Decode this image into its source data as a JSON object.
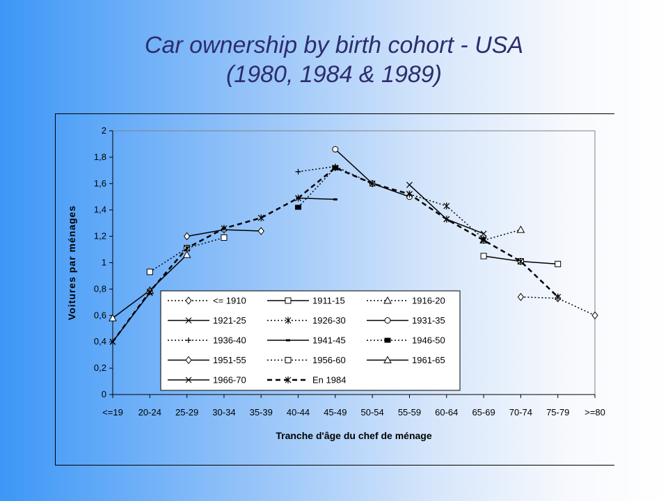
{
  "slide": {
    "title_line1": "Car ownership by birth cohort - USA",
    "title_line2": "(1980, 1984 & 1989)"
  },
  "chart_data": {
    "type": "line",
    "categories": [
      "<=19",
      "20-24",
      "25-29",
      "30-34",
      "35-39",
      "40-44",
      "45-49",
      "50-54",
      "55-59",
      "60-64",
      "65-69",
      "70-74",
      "75-79",
      ">=80"
    ],
    "xlabel": "Tranche d'âge du chef de ménage",
    "ylabel": "Voitures par ménages",
    "ylim": [
      0,
      2
    ],
    "yticks": [
      "0",
      "0,2",
      "0,4",
      "0,6",
      "0,8",
      "1",
      "1,2",
      "1,4",
      "1,6",
      "1,8",
      "2"
    ],
    "legend_position": "bottom-center inside plot",
    "series": [
      {
        "name": "<= 1910",
        "marker": "diamond",
        "dash": "dotted",
        "values": [
          null,
          null,
          null,
          null,
          null,
          null,
          null,
          null,
          null,
          null,
          null,
          0.74,
          0.73,
          0.6
        ]
      },
      {
        "name": "1911-15",
        "marker": "square",
        "dash": "solid",
        "values": [
          null,
          null,
          null,
          null,
          null,
          null,
          null,
          null,
          null,
          null,
          1.05,
          1.01,
          0.99,
          null
        ]
      },
      {
        "name": "1916-20",
        "marker": "triangle",
        "dash": "dotted",
        "values": [
          null,
          null,
          null,
          null,
          null,
          null,
          null,
          null,
          null,
          null,
          1.17,
          1.25,
          null,
          null
        ]
      },
      {
        "name": "1921-25",
        "marker": "x",
        "dash": "solid",
        "values": [
          null,
          null,
          null,
          null,
          null,
          null,
          null,
          null,
          1.59,
          1.33,
          1.22,
          null,
          null,
          null
        ]
      },
      {
        "name": "1926-30",
        "marker": "star",
        "dash": "dotted",
        "values": [
          null,
          null,
          null,
          null,
          null,
          null,
          null,
          null,
          1.52,
          1.43,
          1.18,
          null,
          null,
          null
        ]
      },
      {
        "name": "1931-35",
        "marker": "circle",
        "dash": "solid",
        "values": [
          null,
          null,
          null,
          null,
          null,
          null,
          1.86,
          1.6,
          1.5,
          null,
          null,
          null,
          null,
          null
        ]
      },
      {
        "name": "1936-40",
        "marker": "plus",
        "dash": "dotted",
        "values": [
          null,
          null,
          null,
          null,
          null,
          1.69,
          1.73,
          1.6,
          null,
          null,
          null,
          null,
          null,
          null
        ]
      },
      {
        "name": "1941-45",
        "marker": "dash",
        "dash": "solid",
        "values": [
          null,
          null,
          null,
          null,
          null,
          1.49,
          1.48,
          null,
          null,
          null,
          null,
          null,
          null,
          null
        ]
      },
      {
        "name": "1946-50",
        "marker": "fsquare",
        "dash": "dotted",
        "values": [
          null,
          null,
          null,
          null,
          null,
          1.42,
          1.72,
          null,
          null,
          null,
          null,
          null,
          null,
          null
        ]
      },
      {
        "name": "1951-55",
        "marker": "diamond",
        "dash": "solid",
        "values": [
          null,
          null,
          1.2,
          1.25,
          1.24,
          null,
          null,
          null,
          null,
          null,
          null,
          null,
          null,
          null
        ]
      },
      {
        "name": "1956-60",
        "marker": "square",
        "dash": "dotted",
        "values": [
          null,
          0.93,
          1.11,
          1.19,
          null,
          null,
          null,
          null,
          null,
          null,
          null,
          null,
          null,
          null
        ]
      },
      {
        "name": "1961-65",
        "marker": "triangle",
        "dash": "solid",
        "values": [
          0.58,
          0.79,
          1.06,
          null,
          null,
          null,
          null,
          null,
          null,
          null,
          null,
          null,
          null,
          null
        ]
      },
      {
        "name": "1966-70",
        "marker": "x",
        "dash": "solid",
        "values": [
          0.4,
          0.77,
          null,
          null,
          null,
          null,
          null,
          null,
          null,
          null,
          null,
          null,
          null,
          null
        ]
      },
      {
        "name": "En 1984",
        "marker": "star",
        "dash": "dashed-bold",
        "values": [
          0.4,
          0.78,
          1.11,
          1.26,
          1.34,
          1.49,
          1.72,
          1.6,
          1.52,
          1.33,
          1.17,
          1.01,
          0.74,
          null
        ]
      }
    ]
  }
}
